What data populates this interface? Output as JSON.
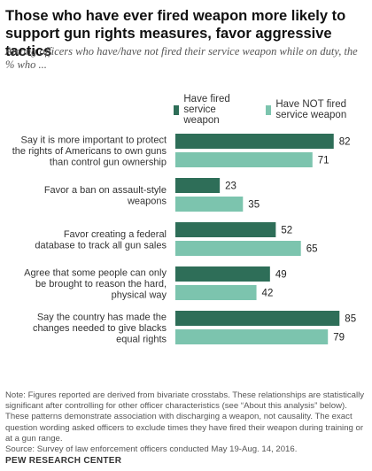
{
  "header": {
    "title": "Those who have ever fired weapon more likely to support gun rights measures, favor aggressive tactics",
    "subtitle": "Among officers who have/have not fired their service weapon while on duty, the % who ..."
  },
  "colors": {
    "fired": "#2e6e58",
    "not_fired": "#7cc4ae"
  },
  "chart_data": {
    "type": "bar",
    "orientation": "horizontal",
    "categories": [
      "Say it is more important to protect the rights of Americans to own guns than control gun ownership",
      "Favor a ban on assault-style weapons",
      "Favor creating a federal database to track all gun sales",
      "Agree that some people can only be brought to reason the hard, physical way",
      "Say the country has made the changes needed to give blacks equal rights"
    ],
    "category_lines": [
      [
        "Say it is more important to protect",
        "the rights of Americans to own guns",
        "than control gun ownership"
      ],
      [
        "Favor a ban on assault-style",
        "weapons"
      ],
      [
        "Favor creating a federal",
        "database to track all gun sales"
      ],
      [
        "Agree that some people can only",
        "be brought to reason the hard,",
        "physical way"
      ],
      [
        "Say the country has made the",
        "changes needed to give blacks",
        "equal rights"
      ]
    ],
    "series": [
      {
        "name": "Have fired service weapon",
        "values": [
          82,
          23,
          52,
          49,
          85
        ]
      },
      {
        "name": "Have NOT fired service weapon",
        "values": [
          71,
          35,
          65,
          42,
          79
        ]
      }
    ],
    "xlim": [
      0,
      100
    ],
    "legend": "top",
    "grid": false
  },
  "footer": {
    "note": "Note: Figures reported are derived from bivariate crosstabs. These relationships are statistically significant after controlling for other officer characteristics (see “About this analysis” below). These patterns demonstrate association with discharging a weapon, not causality. The exact question wording asked officers to exclude times they have fired their weapon during training or at a gun range.",
    "source": "Source: Survey of law enforcement officers conducted May 19-Aug. 14, 2016.",
    "brand": "PEW RESEARCH CENTER"
  }
}
